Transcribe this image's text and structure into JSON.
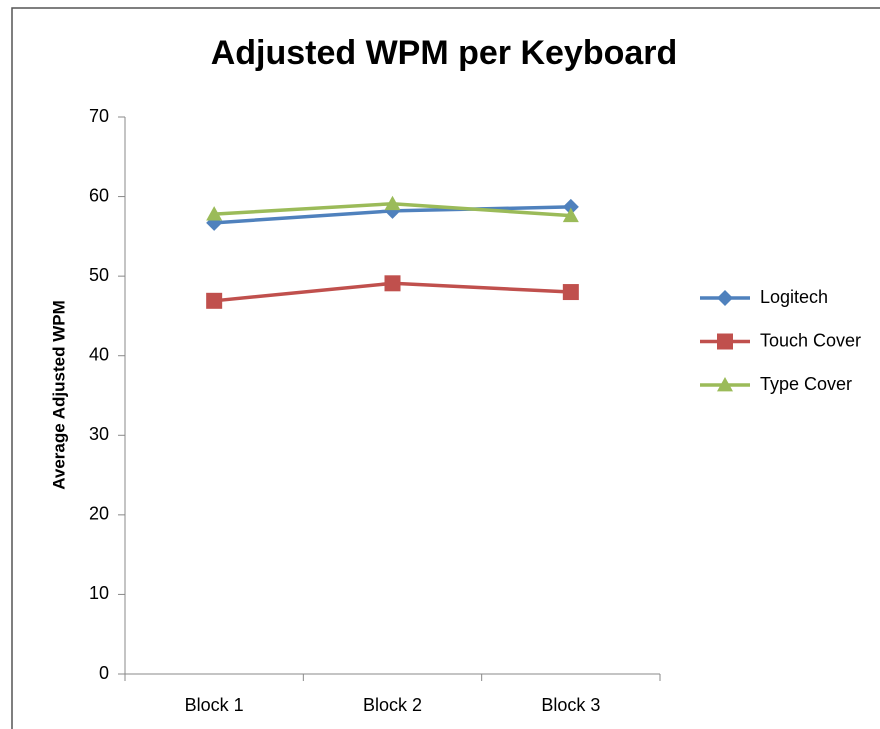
{
  "chart_data": {
    "type": "line",
    "title": "Adjusted WPM per Keyboard",
    "y_label": "Average Adjusted WPM",
    "categories": [
      "Block 1",
      "Block 2",
      "Block 3"
    ],
    "series": [
      {
        "name": "Logitech",
        "color": "#4f81bd",
        "marker": "diamond",
        "values": [
          56.7,
          58.2,
          58.7
        ]
      },
      {
        "name": "Touch Cover",
        "color": "#c0504d",
        "marker": "square",
        "values": [
          46.9,
          49.1,
          48.0
        ]
      },
      {
        "name": "Type Cover",
        "color": "#9bbb59",
        "marker": "triangle",
        "values": [
          57.8,
          59.1,
          57.6
        ]
      }
    ],
    "ylim": [
      0,
      70
    ],
    "yticks": [
      0,
      10,
      20,
      30,
      40,
      50,
      60,
      70
    ],
    "grid": false,
    "legend": "right"
  }
}
